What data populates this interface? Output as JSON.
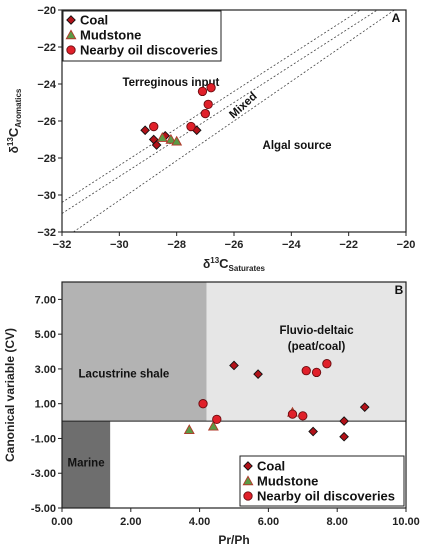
{
  "legend_items": [
    {
      "label": "Coal",
      "marker": "diamond",
      "color": "#b21219"
    },
    {
      "label": "Mudstone",
      "marker": "triangle",
      "color": "#5b9a45"
    },
    {
      "label": "Nearby oil discoveries",
      "marker": "circle",
      "color": "#e0202a"
    }
  ],
  "chart_data": [
    {
      "type": "scatter",
      "panel_label": "A",
      "xlabel": {
        "main": "δ",
        "sup": "13",
        "c": "C",
        "sub": "Saturates"
      },
      "ylabel": {
        "main": "δ",
        "sup": "13",
        "c": "C",
        "sub": "Aromatics"
      },
      "xlim": [
        -32,
        -20
      ],
      "ylim": [
        -32,
        -20
      ],
      "xticks": [
        -32,
        -30,
        -28,
        -26,
        -24,
        -22,
        -20
      ],
      "yticks": [
        -32,
        -30,
        -28,
        -26,
        -24,
        -22,
        -20
      ],
      "tick_labels": [
        "−32",
        "−30",
        "−28",
        "−26",
        "−24",
        "−22",
        "−20"
      ],
      "annotations": [
        {
          "text": "Terreginous input",
          "x": -28.2,
          "y": -24.1
        },
        {
          "text": "Mixed",
          "x": -25.6,
          "y": -25.3
        },
        {
          "text": "Algal source",
          "x": -23.8,
          "y": -27.5
        }
      ],
      "legend": "top-left",
      "series": [
        {
          "name": "Coal",
          "marker": "diamond",
          "points": [
            [
              -29.1,
              -26.5
            ],
            [
              -28.8,
              -27.0
            ],
            [
              -28.7,
              -27.3
            ],
            [
              -28.4,
              -26.8
            ],
            [
              -27.3,
              -26.5
            ]
          ]
        },
        {
          "name": "Mudstone",
          "marker": "triangle",
          "points": [
            [
              -28.5,
              -26.9
            ],
            [
              -28.2,
              -27.0
            ],
            [
              -28.0,
              -27.1
            ]
          ]
        },
        {
          "name": "Nearby oil discoveries",
          "marker": "circle",
          "points": [
            [
              -28.8,
              -26.3
            ],
            [
              -27.5,
              -26.3
            ],
            [
              -27.1,
              -24.4
            ],
            [
              -26.9,
              -25.1
            ],
            [
              -26.8,
              -24.2
            ],
            [
              -27.0,
              -25.6
            ]
          ]
        }
      ]
    },
    {
      "type": "scatter",
      "panel_label": "B",
      "xlabel": "Pr/Ph",
      "ylabel": "Canonical variable (CV)",
      "xlim": [
        0,
        10
      ],
      "ylim": [
        -5,
        8
      ],
      "xticks": [
        0,
        2,
        4,
        6,
        8,
        10
      ],
      "yticks": [
        -5,
        -3,
        -1,
        1,
        3,
        5,
        7
      ],
      "xtick_labels": [
        "0.00",
        "2.00",
        "4.00",
        "6.00",
        "8.00",
        "10.00"
      ],
      "ytick_labels": [
        "-5.00",
        "-3.00",
        "-1.00",
        "1.00",
        "3.00",
        "5.00",
        "7.00"
      ],
      "regions": [
        {
          "label": "Lacustrine shale",
          "x": [
            0,
            4.2
          ],
          "y": [
            0,
            8
          ],
          "color": "#b3b3b3"
        },
        {
          "label": "Fluvio-deltaic",
          "label2": "(peat/coal)",
          "x": [
            4.2,
            10
          ],
          "y": [
            0,
            8
          ],
          "color": "#e6e6e6"
        },
        {
          "label": "Marine",
          "x": [
            0,
            1.4
          ],
          "y": [
            -5,
            0
          ],
          "color": "#6e6e6e"
        }
      ],
      "legend": "bottom-right",
      "series": [
        {
          "name": "Coal",
          "marker": "diamond",
          "points": [
            [
              5.0,
              3.2
            ],
            [
              5.7,
              2.7
            ],
            [
              7.3,
              -0.6
            ],
            [
              8.2,
              0.0
            ],
            [
              8.2,
              -0.9
            ],
            [
              8.8,
              0.8
            ]
          ]
        },
        {
          "name": "Mudstone",
          "marker": "triangle",
          "points": [
            [
              3.7,
              -0.5
            ],
            [
              4.4,
              -0.3
            ],
            [
              6.7,
              0.5
            ]
          ]
        },
        {
          "name": "Nearby oil discoveries",
          "marker": "circle",
          "points": [
            [
              4.1,
              1.0
            ],
            [
              4.5,
              0.1
            ],
            [
              6.7,
              0.4
            ],
            [
              7.0,
              0.3
            ],
            [
              7.1,
              2.9
            ],
            [
              7.4,
              2.8
            ],
            [
              7.7,
              3.3
            ]
          ]
        }
      ]
    }
  ]
}
